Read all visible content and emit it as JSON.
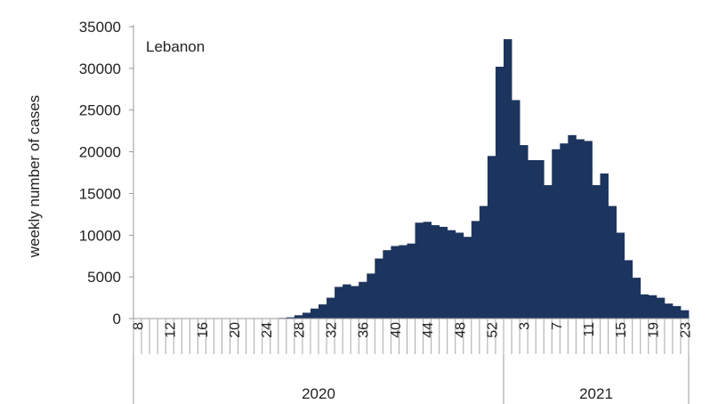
{
  "chart_data": {
    "type": "bar",
    "annotation": "Lebanon",
    "ylabel": "weekly number of cases",
    "ylim": [
      0,
      35000
    ],
    "yticks": [
      0,
      5000,
      10000,
      15000,
      20000,
      25000,
      30000,
      35000
    ],
    "bar_color": "#1c355e",
    "grid": false,
    "years": [
      {
        "label": "2020",
        "first_week": 8,
        "last_week": 53
      },
      {
        "label": "2021",
        "first_week": 1,
        "last_week": 23
      }
    ],
    "tick_labels": [
      "8",
      "12",
      "16",
      "20",
      "24",
      "28",
      "32",
      "36",
      "40",
      "44",
      "48",
      "52",
      "3",
      "7",
      "11",
      "15",
      "19",
      "23"
    ],
    "weeks": [
      "2020-W08",
      "2020-W09",
      "2020-W10",
      "2020-W11",
      "2020-W12",
      "2020-W13",
      "2020-W14",
      "2020-W15",
      "2020-W16",
      "2020-W17",
      "2020-W18",
      "2020-W19",
      "2020-W20",
      "2020-W21",
      "2020-W22",
      "2020-W23",
      "2020-W24",
      "2020-W25",
      "2020-W26",
      "2020-W27",
      "2020-W28",
      "2020-W29",
      "2020-W30",
      "2020-W31",
      "2020-W32",
      "2020-W33",
      "2020-W34",
      "2020-W35",
      "2020-W36",
      "2020-W37",
      "2020-W38",
      "2020-W39",
      "2020-W40",
      "2020-W41",
      "2020-W42",
      "2020-W43",
      "2020-W44",
      "2020-W45",
      "2020-W46",
      "2020-W47",
      "2020-W48",
      "2020-W49",
      "2020-W50",
      "2020-W51",
      "2020-W52",
      "2020-W53",
      "2021-W01",
      "2021-W02",
      "2021-W03",
      "2021-W04",
      "2021-W05",
      "2021-W06",
      "2021-W07",
      "2021-W08",
      "2021-W09",
      "2021-W10",
      "2021-W11",
      "2021-W12",
      "2021-W13",
      "2021-W14",
      "2021-W15",
      "2021-W16",
      "2021-W17",
      "2021-W18",
      "2021-W19",
      "2021-W20",
      "2021-W21",
      "2021-W22",
      "2021-W23"
    ],
    "values": [
      5,
      8,
      10,
      12,
      15,
      15,
      12,
      10,
      10,
      8,
      8,
      10,
      15,
      20,
      20,
      25,
      30,
      50,
      80,
      150,
      400,
      700,
      1200,
      1700,
      2500,
      3800,
      4100,
      3900,
      4400,
      5400,
      7200,
      8200,
      8700,
      8800,
      9000,
      11500,
      11600,
      11200,
      11000,
      10600,
      10300,
      9800,
      11700,
      13500,
      19500,
      30200,
      33500,
      26200,
      20800,
      19000,
      19000,
      16000,
      20300,
      21000,
      22000,
      21500,
      21300,
      16000,
      17400,
      13500,
      10300,
      7000,
      4900,
      2900,
      2800,
      2500,
      1800,
      1500,
      1000
    ]
  }
}
